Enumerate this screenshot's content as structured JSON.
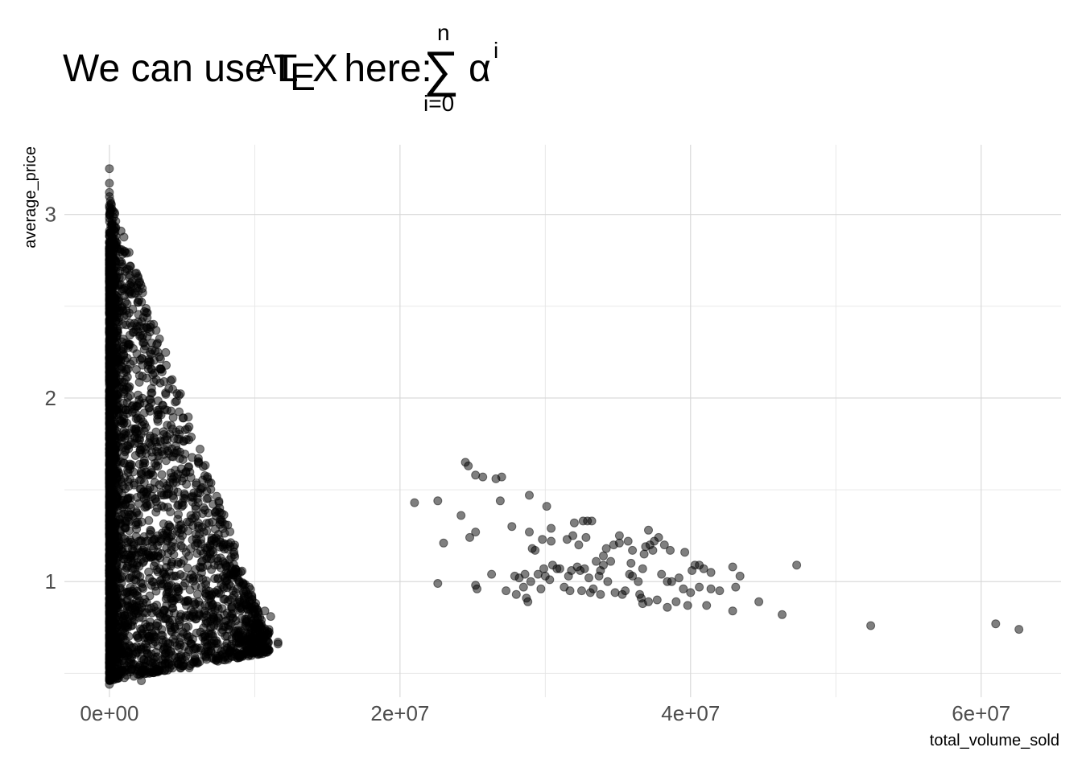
{
  "chart_data": {
    "type": "scatter",
    "title": {
      "prefix": "We can use L",
      "latex_a": "A",
      "latex_t": "T",
      "latex_e": "E",
      "latex_x": "X",
      "suffix": " here:",
      "sum_symbol": "∑",
      "sum_upper": "n",
      "sum_lower": "i=0",
      "alpha": "α",
      "alpha_exponent": "i"
    },
    "xlabel": "total_volume_sold",
    "ylabel": "average_price",
    "xlim": [
      -3100000,
      65500000
    ],
    "ylim": [
      0.37,
      3.38
    ],
    "x_ticks": [
      {
        "value": 0,
        "label": "0e+00"
      },
      {
        "value": 20000000,
        "label": "2e+07"
      },
      {
        "value": 40000000,
        "label": "4e+07"
      },
      {
        "value": 60000000,
        "label": "6e+07"
      }
    ],
    "y_ticks": [
      {
        "value": 1,
        "label": "1"
      },
      {
        "value": 2,
        "label": "2"
      },
      {
        "value": 3,
        "label": "3"
      }
    ],
    "grid": true,
    "point_color": "#000000",
    "point_alpha": 0.5,
    "dense_cluster": {
      "note": "several thousand overlapping points near x = 0",
      "x_range": [
        0,
        11500000
      ],
      "y_range": [
        0.44,
        3.25
      ]
    },
    "points": [
      [
        0,
        3.25
      ],
      [
        0,
        3.17
      ],
      [
        0,
        3.12
      ],
      [
        0,
        3.04
      ],
      [
        0,
        2.98
      ],
      [
        0,
        2.9
      ],
      [
        0,
        2.8
      ],
      [
        0,
        2.7
      ],
      [
        0,
        0.44
      ],
      [
        0,
        0.5
      ],
      [
        0,
        0.56
      ],
      [
        400000,
        2.2
      ],
      [
        700000,
        2.1
      ],
      [
        1000000,
        2.05
      ],
      [
        2100000,
        1.97
      ],
      [
        2300000,
        1.87
      ],
      [
        2400000,
        1.82
      ],
      [
        3100000,
        1.77
      ],
      [
        3500000,
        1.76
      ],
      [
        4000000,
        1.74
      ],
      [
        4600000,
        1.7
      ],
      [
        3800000,
        1.72
      ],
      [
        2800000,
        1.75
      ],
      [
        2200000,
        1.6
      ],
      [
        2700000,
        1.58
      ],
      [
        4400000,
        1.68
      ],
      [
        5300000,
        1.53
      ],
      [
        5200000,
        1.47
      ],
      [
        5000000,
        1.43
      ],
      [
        5600000,
        1.36
      ],
      [
        4700000,
        1.34
      ],
      [
        4200000,
        1.38
      ],
      [
        3300000,
        1.4
      ],
      [
        6100000,
        1.32
      ],
      [
        6500000,
        1.27
      ],
      [
        6300000,
        1.23
      ],
      [
        7300000,
        1.22
      ],
      [
        7500000,
        1.09
      ],
      [
        8000000,
        1.09
      ],
      [
        8500000,
        0.95
      ],
      [
        8700000,
        0.94
      ],
      [
        8800000,
        0.88
      ],
      [
        8400000,
        0.86
      ],
      [
        9100000,
        0.85
      ],
      [
        8500000,
        0.8
      ],
      [
        8900000,
        0.76
      ],
      [
        9100000,
        0.7
      ],
      [
        9700000,
        0.69
      ],
      [
        10200000,
        0.69
      ],
      [
        10700000,
        0.84
      ],
      [
        11100000,
        0.81
      ],
      [
        11600000,
        0.67
      ],
      [
        11600000,
        0.66
      ],
      [
        9500000,
        0.62
      ],
      [
        10500000,
        0.64
      ],
      [
        6800000,
        0.62
      ],
      [
        6600000,
        0.68
      ],
      [
        5500000,
        0.53
      ],
      [
        5000000,
        0.58
      ],
      [
        4000000,
        0.63
      ],
      [
        3800000,
        0.64
      ],
      [
        4200000,
        0.62
      ],
      [
        3000000,
        0.66
      ],
      [
        2200000,
        0.46
      ],
      [
        2500000,
        0.56
      ],
      [
        1200000,
        0.49
      ],
      [
        1500000,
        0.52
      ],
      [
        1600000,
        0.55
      ],
      [
        2800000,
        0.78
      ],
      [
        3200000,
        0.76
      ],
      [
        6000000,
        0.72
      ],
      [
        5500000,
        0.7
      ],
      [
        7200000,
        0.76
      ],
      [
        21000000,
        1.43
      ],
      [
        22600000,
        1.44
      ],
      [
        22600000,
        0.99
      ],
      [
        23000000,
        1.21
      ],
      [
        24200000,
        1.36
      ],
      [
        24500000,
        1.65
      ],
      [
        24700000,
        1.63
      ],
      [
        24800000,
        1.24
      ],
      [
        25200000,
        1.58
      ],
      [
        25200000,
        1.27
      ],
      [
        25200000,
        0.98
      ],
      [
        25300000,
        0.96
      ],
      [
        25700000,
        1.57
      ],
      [
        26300000,
        1.04
      ],
      [
        26600000,
        1.56
      ],
      [
        27000000,
        1.57
      ],
      [
        26900000,
        1.44
      ],
      [
        27300000,
        0.95
      ],
      [
        27700000,
        1.3
      ],
      [
        28000000,
        0.93
      ],
      [
        27900000,
        1.03
      ],
      [
        28200000,
        1.02
      ],
      [
        28600000,
        1.04
      ],
      [
        28500000,
        0.97
      ],
      [
        28700000,
        0.91
      ],
      [
        28800000,
        0.89
      ],
      [
        28900000,
        1.47
      ],
      [
        28900000,
        1.27
      ],
      [
        29000000,
        1.0
      ],
      [
        29100000,
        1.18
      ],
      [
        29300000,
        1.17
      ],
      [
        29500000,
        1.04
      ],
      [
        29700000,
        0.96
      ],
      [
        29800000,
        1.23
      ],
      [
        29900000,
        1.07
      ],
      [
        30000000,
        1.03
      ],
      [
        30100000,
        1.41
      ],
      [
        30300000,
        1.01
      ],
      [
        30400000,
        1.29
      ],
      [
        30400000,
        1.22
      ],
      [
        30500000,
        1.09
      ],
      [
        30800000,
        1.07
      ],
      [
        31000000,
        1.07
      ],
      [
        31300000,
        0.97
      ],
      [
        31500000,
        1.23
      ],
      [
        31600000,
        1.03
      ],
      [
        31700000,
        0.95
      ],
      [
        31800000,
        1.06
      ],
      [
        31900000,
        1.25
      ],
      [
        32000000,
        1.32
      ],
      [
        32200000,
        1.08
      ],
      [
        32300000,
        1.2
      ],
      [
        32400000,
        1.06
      ],
      [
        32500000,
        0.95
      ],
      [
        32600000,
        1.33
      ],
      [
        32700000,
        1.07
      ],
      [
        32800000,
        1.24
      ],
      [
        32900000,
        1.33
      ],
      [
        33000000,
        1.02
      ],
      [
        33100000,
        0.94
      ],
      [
        33200000,
        1.33
      ],
      [
        33300000,
        0.96
      ],
      [
        33500000,
        1.11
      ],
      [
        33700000,
        1.03
      ],
      [
        33800000,
        1.06
      ],
      [
        33800000,
        0.93
      ],
      [
        34000000,
        1.14
      ],
      [
        34000000,
        1.09
      ],
      [
        34200000,
        1.18
      ],
      [
        34300000,
        1.0
      ],
      [
        34500000,
        1.11
      ],
      [
        34700000,
        1.2
      ],
      [
        34800000,
        0.94
      ],
      [
        35100000,
        1.25
      ],
      [
        35100000,
        1.21
      ],
      [
        35300000,
        0.93
      ],
      [
        35500000,
        0.95
      ],
      [
        35700000,
        1.22
      ],
      [
        35800000,
        1.04
      ],
      [
        35900000,
        1.1
      ],
      [
        36000000,
        1.03
      ],
      [
        36000000,
        1.17
      ],
      [
        36400000,
        1.0
      ],
      [
        36500000,
        0.93
      ],
      [
        36600000,
        0.91
      ],
      [
        36700000,
        0.88
      ],
      [
        36700000,
        1.07
      ],
      [
        36800000,
        1.15
      ],
      [
        36900000,
        1.19
      ],
      [
        37100000,
        1.28
      ],
      [
        37100000,
        0.89
      ],
      [
        37200000,
        1.2
      ],
      [
        37400000,
        1.17
      ],
      [
        37500000,
        1.22
      ],
      [
        37700000,
        0.9
      ],
      [
        37800000,
        1.24
      ],
      [
        38000000,
        1.04
      ],
      [
        38200000,
        1.2
      ],
      [
        38400000,
        0.86
      ],
      [
        38400000,
        1.0
      ],
      [
        38600000,
        1.17
      ],
      [
        38700000,
        1.0
      ],
      [
        39000000,
        0.89
      ],
      [
        39200000,
        1.02
      ],
      [
        39500000,
        0.96
      ],
      [
        39600000,
        1.16
      ],
      [
        39800000,
        0.87
      ],
      [
        40000000,
        0.94
      ],
      [
        40100000,
        1.06
      ],
      [
        40300000,
        1.09
      ],
      [
        40600000,
        0.97
      ],
      [
        40600000,
        1.09
      ],
      [
        40900000,
        1.07
      ],
      [
        41100000,
        0.87
      ],
      [
        41400000,
        0.96
      ],
      [
        41400000,
        1.05
      ],
      [
        42000000,
        0.95
      ],
      [
        42900000,
        0.84
      ],
      [
        42900000,
        1.08
      ],
      [
        43100000,
        0.97
      ],
      [
        43400000,
        1.03
      ],
      [
        44700000,
        0.89
      ],
      [
        46300000,
        0.82
      ],
      [
        47300000,
        1.09
      ],
      [
        52400000,
        0.76
      ],
      [
        61000000,
        0.77
      ],
      [
        62600000,
        0.74
      ]
    ]
  }
}
